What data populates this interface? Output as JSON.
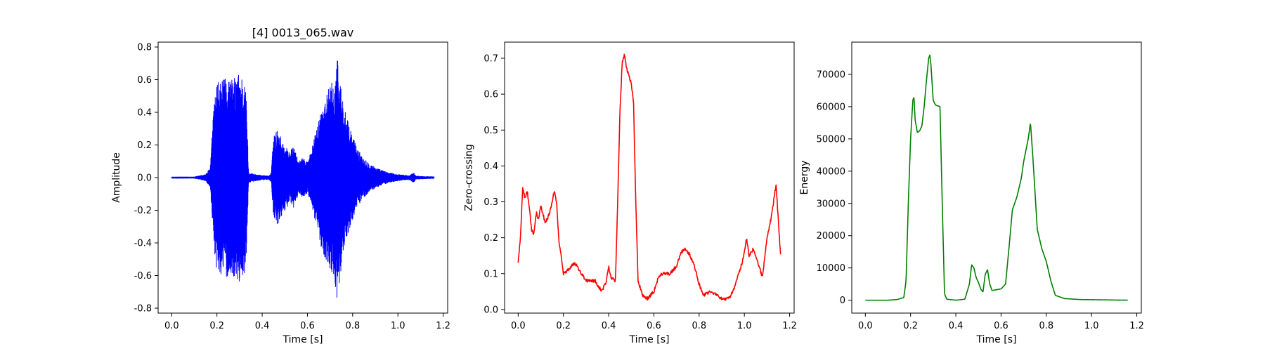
{
  "chart_data": [
    {
      "type": "line",
      "title": "[4] 0013_065.wav",
      "xlabel": "Time [s]",
      "ylabel": "Amplitude",
      "xlim": [
        -0.06,
        1.22
      ],
      "ylim": [
        -0.83,
        0.83
      ],
      "xticks": [
        "0.0",
        "0.2",
        "0.4",
        "0.6",
        "0.8",
        "1.0",
        "1.2"
      ],
      "yticks": [
        "-0.8",
        "-0.6",
        "-0.4",
        "-0.2",
        "0.0",
        "0.2",
        "0.4",
        "0.6",
        "0.8"
      ],
      "color": "#0000ff",
      "series": [
        {
          "envelope": [
            [
              0.0,
              0.004
            ],
            [
              0.1,
              0.004
            ],
            [
              0.15,
              0.02
            ],
            [
              0.17,
              0.06
            ],
            [
              0.18,
              0.3
            ],
            [
              0.19,
              0.5
            ],
            [
              0.2,
              0.58
            ],
            [
              0.23,
              0.6
            ],
            [
              0.25,
              0.62
            ],
            [
              0.27,
              0.6
            ],
            [
              0.3,
              0.65
            ],
            [
              0.32,
              0.6
            ],
            [
              0.33,
              0.5
            ],
            [
              0.34,
              0.03
            ],
            [
              0.37,
              0.02
            ],
            [
              0.39,
              0.015
            ],
            [
              0.43,
              0.01
            ],
            [
              0.44,
              0.03
            ],
            [
              0.45,
              0.26
            ],
            [
              0.47,
              0.3
            ],
            [
              0.49,
              0.22
            ],
            [
              0.5,
              0.2
            ],
            [
              0.52,
              0.16
            ],
            [
              0.54,
              0.19
            ],
            [
              0.56,
              0.1
            ],
            [
              0.58,
              0.12
            ],
            [
              0.6,
              0.1
            ],
            [
              0.62,
              0.18
            ],
            [
              0.64,
              0.3
            ],
            [
              0.66,
              0.42
            ],
            [
              0.68,
              0.5
            ],
            [
              0.7,
              0.57
            ],
            [
              0.72,
              0.6
            ],
            [
              0.73,
              0.76
            ],
            [
              0.75,
              0.55
            ],
            [
              0.77,
              0.38
            ],
            [
              0.79,
              0.3
            ],
            [
              0.82,
              0.18
            ],
            [
              0.85,
              0.12
            ],
            [
              0.88,
              0.08
            ],
            [
              0.92,
              0.05
            ],
            [
              0.96,
              0.03
            ],
            [
              1.0,
              0.02
            ],
            [
              1.05,
              0.012
            ],
            [
              1.07,
              0.03
            ],
            [
              1.08,
              0.01
            ],
            [
              1.1,
              0.008
            ],
            [
              1.16,
              0.005
            ]
          ]
        }
      ]
    },
    {
      "type": "line",
      "title": "",
      "xlabel": "Time [s]",
      "ylabel": "Zero-crossing",
      "xlim": [
        -0.06,
        1.22
      ],
      "ylim": [
        -0.01,
        0.745
      ],
      "xticks": [
        "0.0",
        "0.2",
        "0.4",
        "0.6",
        "0.8",
        "1.0",
        "1.2"
      ],
      "yticks": [
        "0.0",
        "0.1",
        "0.2",
        "0.3",
        "0.4",
        "0.5",
        "0.6",
        "0.7"
      ],
      "color": "#ff0000",
      "series": [
        {
          "points": [
            [
              0.0,
              0.13
            ],
            [
              0.01,
              0.2
            ],
            [
              0.02,
              0.34
            ],
            [
              0.03,
              0.31
            ],
            [
              0.04,
              0.33
            ],
            [
              0.05,
              0.28
            ],
            [
              0.06,
              0.22
            ],
            [
              0.07,
              0.21
            ],
            [
              0.08,
              0.27
            ],
            [
              0.09,
              0.25
            ],
            [
              0.1,
              0.29
            ],
            [
              0.12,
              0.24
            ],
            [
              0.14,
              0.27
            ],
            [
              0.16,
              0.33
            ],
            [
              0.17,
              0.3
            ],
            [
              0.18,
              0.19
            ],
            [
              0.19,
              0.15
            ],
            [
              0.2,
              0.1
            ],
            [
              0.22,
              0.11
            ],
            [
              0.25,
              0.13
            ],
            [
              0.28,
              0.1
            ],
            [
              0.3,
              0.08
            ],
            [
              0.34,
              0.08
            ],
            [
              0.37,
              0.05
            ],
            [
              0.39,
              0.08
            ],
            [
              0.4,
              0.12
            ],
            [
              0.41,
              0.09
            ],
            [
              0.43,
              0.08
            ],
            [
              0.44,
              0.3
            ],
            [
              0.45,
              0.55
            ],
            [
              0.46,
              0.69
            ],
            [
              0.47,
              0.71
            ],
            [
              0.48,
              0.67
            ],
            [
              0.5,
              0.63
            ],
            [
              0.51,
              0.58
            ],
            [
              0.52,
              0.3
            ],
            [
              0.53,
              0.08
            ],
            [
              0.55,
              0.04
            ],
            [
              0.57,
              0.03
            ],
            [
              0.6,
              0.05
            ],
            [
              0.62,
              0.09
            ],
            [
              0.64,
              0.1
            ],
            [
              0.67,
              0.1
            ],
            [
              0.7,
              0.12
            ],
            [
              0.72,
              0.16
            ],
            [
              0.74,
              0.17
            ],
            [
              0.76,
              0.15
            ],
            [
              0.78,
              0.12
            ],
            [
              0.8,
              0.07
            ],
            [
              0.82,
              0.04
            ],
            [
              0.85,
              0.05
            ],
            [
              0.88,
              0.04
            ],
            [
              0.9,
              0.03
            ],
            [
              0.93,
              0.03
            ],
            [
              0.95,
              0.05
            ],
            [
              0.97,
              0.09
            ],
            [
              0.99,
              0.13
            ],
            [
              1.01,
              0.2
            ],
            [
              1.02,
              0.15
            ],
            [
              1.04,
              0.17
            ],
            [
              1.06,
              0.13
            ],
            [
              1.08,
              0.09
            ],
            [
              1.1,
              0.2
            ],
            [
              1.12,
              0.26
            ],
            [
              1.14,
              0.35
            ],
            [
              1.15,
              0.25
            ],
            [
              1.16,
              0.15
            ]
          ]
        }
      ]
    },
    {
      "type": "line",
      "title": "",
      "xlabel": "Time [s]",
      "ylabel": "Energy",
      "xlim": [
        -0.06,
        1.22
      ],
      "ylim": [
        -4000,
        80000
      ],
      "xticks": [
        "0.0",
        "0.2",
        "0.4",
        "0.6",
        "0.8",
        "1.0",
        "1.2"
      ],
      "yticks": [
        "0",
        "10000",
        "20000",
        "30000",
        "40000",
        "50000",
        "60000",
        "70000"
      ],
      "color": "#008000",
      "series": [
        {
          "points": [
            [
              0.0,
              0
            ],
            [
              0.1,
              0
            ],
            [
              0.14,
              200
            ],
            [
              0.16,
              600
            ],
            [
              0.17,
              800
            ],
            [
              0.18,
              6000
            ],
            [
              0.19,
              30000
            ],
            [
              0.2,
              50000
            ],
            [
              0.21,
              62000
            ],
            [
              0.215,
              63000
            ],
            [
              0.22,
              56000
            ],
            [
              0.23,
              52000
            ],
            [
              0.24,
              52500
            ],
            [
              0.25,
              54000
            ],
            [
              0.26,
              60000
            ],
            [
              0.27,
              68000
            ],
            [
              0.28,
              75000
            ],
            [
              0.285,
              76000
            ],
            [
              0.29,
              73000
            ],
            [
              0.3,
              62000
            ],
            [
              0.31,
              60500
            ],
            [
              0.33,
              60000
            ],
            [
              0.34,
              30000
            ],
            [
              0.35,
              2000
            ],
            [
              0.36,
              300
            ],
            [
              0.4,
              0
            ],
            [
              0.44,
              300
            ],
            [
              0.46,
              5000
            ],
            [
              0.47,
              11000
            ],
            [
              0.48,
              10000
            ],
            [
              0.49,
              7000
            ],
            [
              0.5,
              5500
            ],
            [
              0.51,
              3500
            ],
            [
              0.52,
              2500
            ],
            [
              0.53,
              8000
            ],
            [
              0.54,
              9500
            ],
            [
              0.55,
              5000
            ],
            [
              0.56,
              3000
            ],
            [
              0.6,
              3500
            ],
            [
              0.62,
              5000
            ],
            [
              0.64,
              20000
            ],
            [
              0.65,
              28000
            ],
            [
              0.67,
              32000
            ],
            [
              0.69,
              38000
            ],
            [
              0.7,
              43000
            ],
            [
              0.72,
              50000
            ],
            [
              0.73,
              55000
            ],
            [
              0.74,
              45000
            ],
            [
              0.76,
              22000
            ],
            [
              0.78,
              16000
            ],
            [
              0.8,
              12000
            ],
            [
              0.82,
              6000
            ],
            [
              0.84,
              1500
            ],
            [
              0.88,
              500
            ],
            [
              0.95,
              200
            ],
            [
              1.16,
              0
            ]
          ]
        }
      ]
    }
  ]
}
